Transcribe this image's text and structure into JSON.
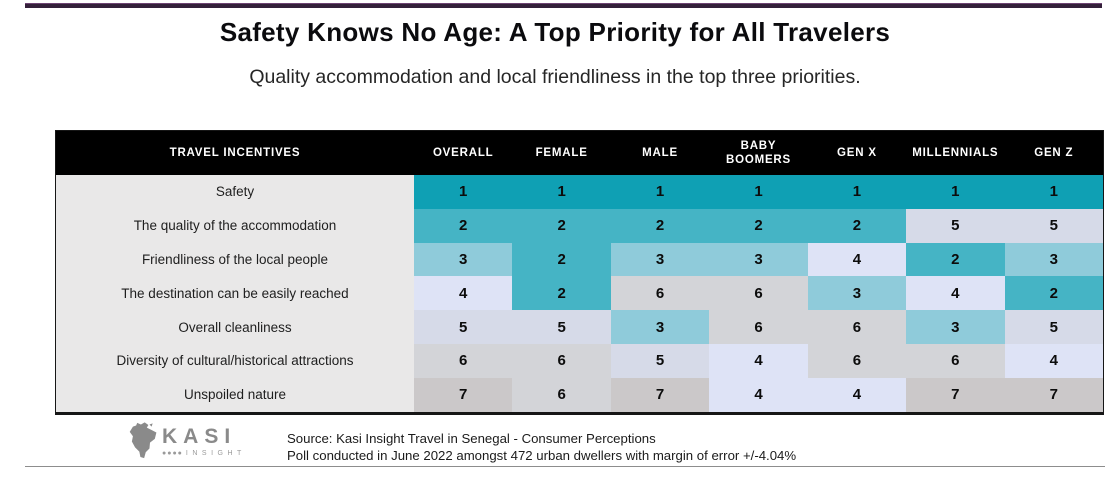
{
  "page": {
    "title": "Safety Knows No Age: A Top Priority for All Travelers",
    "subtitle": "Quality accommodation and local friendliness in the top three priorities."
  },
  "table": {
    "row_header": "TRAVEL INCENTIVES"
  },
  "chart_data": {
    "type": "heatmap",
    "title": "Safety Knows No Age: A Top Priority for All Travelers",
    "subtitle": "Quality accommodation and local friendliness in the top three priorities.",
    "value_meaning": "priority rank, 1 = highest priority",
    "categories": [
      "OVERALL",
      "FEMALE",
      "MALE",
      "BABY BOOMERS",
      "GEN X",
      "MILLENNIALS",
      "GEN Z"
    ],
    "series": [
      {
        "name": "Safety",
        "values": [
          1,
          1,
          1,
          1,
          1,
          1,
          1
        ]
      },
      {
        "name": "The quality of the accommodation",
        "values": [
          2,
          2,
          2,
          2,
          2,
          5,
          5
        ]
      },
      {
        "name": "Friendliness of the local people",
        "values": [
          3,
          2,
          3,
          3,
          4,
          2,
          3
        ]
      },
      {
        "name": "The destination can be easily reached",
        "values": [
          4,
          2,
          6,
          6,
          3,
          4,
          2
        ]
      },
      {
        "name": "Overall cleanliness",
        "values": [
          5,
          5,
          3,
          6,
          6,
          3,
          5
        ]
      },
      {
        "name": "Diversity of cultural/historical attractions",
        "values": [
          6,
          6,
          5,
          4,
          6,
          6,
          4
        ]
      },
      {
        "name": "Unspoiled nature",
        "values": [
          7,
          6,
          7,
          4,
          4,
          7,
          7
        ]
      }
    ],
    "rank_colors": {
      "1": "#0FA0B4",
      "2": "#45B4C5",
      "3": "#8FCBDA",
      "4": "#DEE3F6",
      "5": "#D6DAE8",
      "6": "#D3D4D8",
      "7": "#CBC8C9"
    },
    "header_bg": "#000000",
    "label_column_bg": "#E9E8E8",
    "accent_bar_color": "#34203A",
    "legend_position": "none",
    "grid": false
  },
  "footer": {
    "brand": "KASI",
    "brand_sub": "INSIGHT",
    "source_line1": "Source: Kasi Insight Travel in Senegal - Consumer Perceptions",
    "source_line2": "Poll conducted in June 2022 amongst 472 urban dwellers with margin of error +/-4.04%"
  }
}
